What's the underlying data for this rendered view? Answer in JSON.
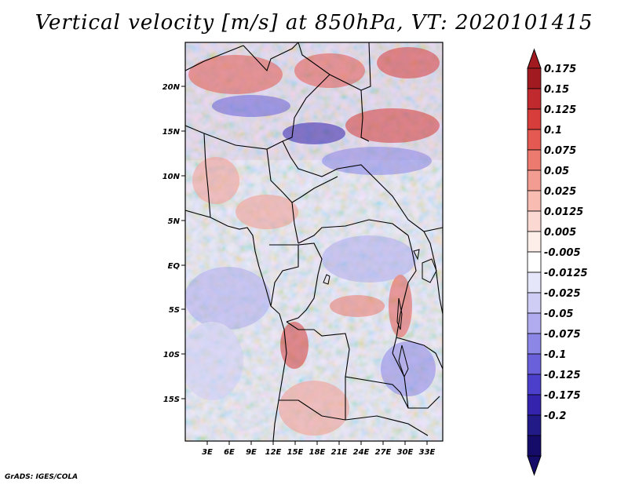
{
  "title": "Vertical velocity [m/s] at 850hPa, VT: 2020101415",
  "credit": "GrADS: IGES/COLA",
  "colors": {
    "frame": "#000000",
    "land_border": "#000000"
  },
  "map": {
    "lat_labels": [
      "20N",
      "15N",
      "10N",
      "5N",
      "EQ",
      "5S",
      "10S",
      "15S"
    ],
    "lon_labels": [
      "3E",
      "6E",
      "9E",
      "12E",
      "15E",
      "18E",
      "21E",
      "24E",
      "27E",
      "30E",
      "33E"
    ]
  },
  "colorbar": {
    "labels": [
      "0.175",
      "0.15",
      "0.125",
      "0.1",
      "0.075",
      "0.05",
      "0.025",
      "0.0125",
      "0.005",
      "-0.005",
      "-0.0125",
      "-0.025",
      "-0.05",
      "-0.075",
      "-0.1",
      "-0.125",
      "-0.175",
      "-0.2"
    ],
    "colors": [
      "#a01a1f",
      "#c02a2e",
      "#d63d3b",
      "#e45a52",
      "#ec7a6f",
      "#f39c91",
      "#f8bcb2",
      "#fbd8d1",
      "#fdeeea",
      "#ffffff",
      "#e6e6fb",
      "#cfcdf6",
      "#b0acef",
      "#8c86e6",
      "#6a61da",
      "#4b3fcb",
      "#3423ad",
      "#221a86",
      "#150c6a"
    ],
    "tip_top_color": "#a01a1f",
    "tip_bottom_color": "#150c6a"
  }
}
